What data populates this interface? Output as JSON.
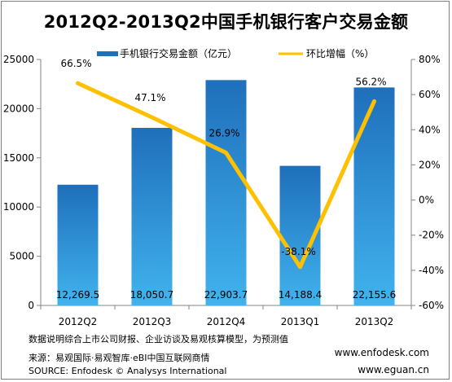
{
  "title": "2012Q2-2013Q2中国手机银行客户交易金额",
  "chart_data": {
    "type": "bar",
    "categories": [
      "2012Q2",
      "2012Q3",
      "2012Q4",
      "2013Q1",
      "2013Q2"
    ],
    "series": [
      {
        "name": "手机银行交易金额（亿元）",
        "type": "bar",
        "axis": "left",
        "values": [
          12269.5,
          18050.7,
          22903.7,
          14188.4,
          22155.6
        ],
        "value_labels": [
          "12,269.5",
          "18,050.7",
          "22,903.7",
          "14,188.4",
          "22,155.6"
        ],
        "color": "#2f80c8"
      },
      {
        "name": "环比增幅（%）",
        "type": "line",
        "axis": "right",
        "values": [
          66.5,
          47.1,
          26.9,
          -38.1,
          56.2
        ],
        "value_labels": [
          "66.5%",
          "47.1%",
          "26.9%",
          "-38.1%",
          "56.2%"
        ],
        "color": "#ffc000"
      }
    ],
    "y_left": {
      "range": [
        0,
        25000
      ],
      "ticks": [
        0,
        5000,
        10000,
        15000,
        20000,
        25000
      ],
      "tick_labels": [
        "0",
        "5000",
        "10000",
        "15000",
        "20000",
        "25000"
      ]
    },
    "y_right": {
      "range": [
        -60,
        80
      ],
      "ticks": [
        -60,
        -40,
        -20,
        0,
        20,
        40,
        60,
        80
      ],
      "tick_labels": [
        "-60%",
        "-40%",
        "-20%",
        "0%",
        "20%",
        "40%",
        "60%",
        "80%"
      ]
    },
    "legend_position": "top-center",
    "grid": false
  },
  "footnotes": {
    "note": "数据说明综合上市公司财报、企业访谈及易观核算模型，为预测值",
    "source_cn": "来源：易观国际·易观智库·eBI中国互联网商情",
    "source_en": "SOURCE: Enfodesk © Analysys International",
    "site1": "www.enfodesk.com",
    "site2": "www.eguan.cn"
  },
  "colors": {
    "bar_top": "#1f6fbb",
    "bar_bottom": "#41b3ee",
    "line": "#ffc000",
    "axis": "#868686"
  }
}
